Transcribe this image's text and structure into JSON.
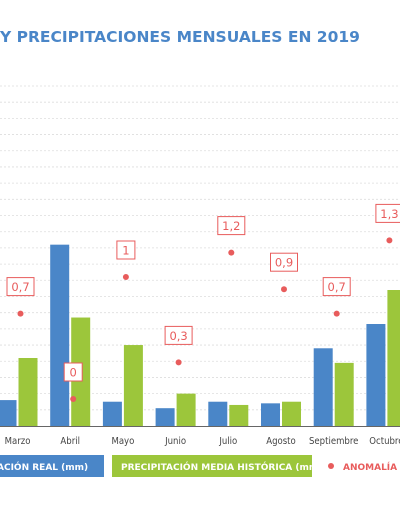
{
  "chart_data": {
    "type": "bar",
    "title": "Y PRECIPITACIONES MENSUALES EN 2019",
    "categories": [
      "Marzo",
      "Abril",
      "Mayo",
      "Junio",
      "Julio",
      "Agosto",
      "Septiembre",
      "Octubre"
    ],
    "series": [
      {
        "name": "PRECIPITACIÓN REAL (mm)",
        "color": "#4a86c8",
        "values": [
          16,
          112,
          15,
          11,
          15,
          14,
          48,
          63
        ]
      },
      {
        "name": "PRECIPITACIÓN MEDIA HISTÓRICA (mm)",
        "color": "#9cc63b",
        "values": [
          42,
          67,
          50,
          20,
          13,
          15,
          39,
          84
        ]
      }
    ],
    "anomaly": {
      "name": "ANOMALÍA T",
      "color": "#e85c5c",
      "values": [
        0.7,
        0,
        1,
        0.3,
        1.2,
        0.9,
        0.7,
        1.3
      ],
      "labels": [
        "0,7",
        "0",
        "1",
        "0,3",
        "1,2",
        "0,9",
        "0,7",
        "1,3"
      ]
    },
    "ylim": [
      0,
      210
    ],
    "grid": true,
    "legend_position": "bottom"
  },
  "colors": {
    "title": "#4a86c8",
    "grid": "#dddddd",
    "axis": "#666666",
    "tick": "#444444"
  }
}
